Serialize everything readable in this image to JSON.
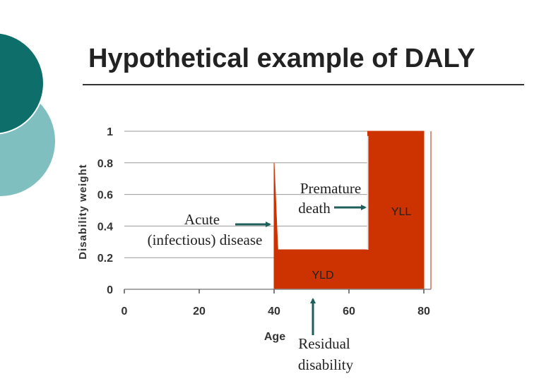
{
  "slide": {
    "title": "Hypothetical example of DALY",
    "colors": {
      "dark_teal": "#0d6e6a",
      "light_teal": "#7fbfbf",
      "area_fill": "#cc3300",
      "arrow": "#1d5f5a"
    }
  },
  "chart_data": {
    "type": "area",
    "title": "",
    "xlabel": "Age",
    "ylabel": "Disability weight",
    "xlim": [
      0,
      80
    ],
    "ylim": [
      0,
      1
    ],
    "x_ticks": [
      "0",
      "20",
      "40",
      "60",
      "80"
    ],
    "y_ticks": [
      "0",
      "0.2",
      "0.4",
      "0.6",
      "0.8",
      "1"
    ],
    "grid": "horizontal",
    "series": [
      {
        "name": "YLD",
        "x": [
          40,
          40,
          41,
          41,
          65,
          65
        ],
        "y": [
          0.8,
          0.8,
          0.25,
          0.25,
          0.25,
          0
        ]
      },
      {
        "name": "YLL",
        "x": [
          65,
          65,
          80,
          80
        ],
        "y": [
          0,
          1,
          1,
          0
        ]
      }
    ],
    "annotations": {
      "acute": [
        "Acute",
        "(infectious) disease"
      ],
      "premature": [
        "Premature",
        "death"
      ],
      "yll": "YLL",
      "yld": "YLD",
      "residual": [
        "Residual",
        "disability"
      ]
    }
  }
}
